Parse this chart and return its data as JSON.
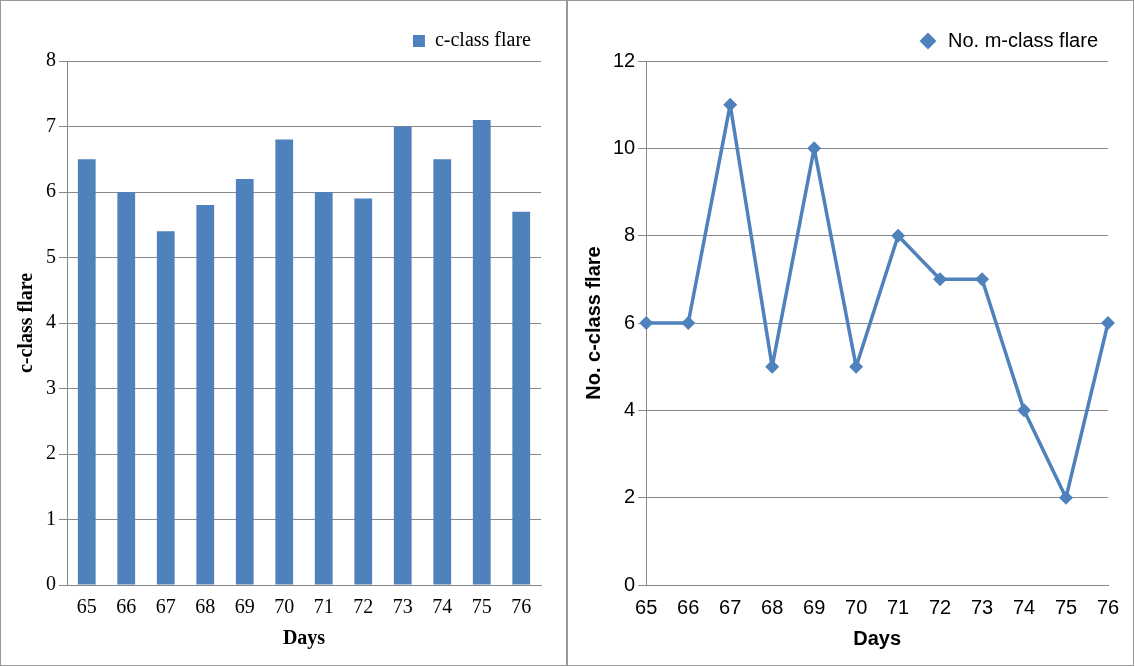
{
  "chart_data": [
    {
      "type": "bar",
      "xlabel": "Days",
      "ylabel": "c-class flare",
      "categories": [
        "65",
        "66",
        "67",
        "68",
        "69",
        "70",
        "71",
        "72",
        "73",
        "74",
        "75",
        "76"
      ],
      "series": [
        {
          "name": "c-class flare",
          "color": "#4f81bd",
          "values": [
            6.5,
            6.0,
            5.4,
            5.8,
            6.2,
            6.8,
            6.0,
            5.9,
            7.0,
            6.5,
            7.1,
            5.7
          ]
        }
      ],
      "ylim": [
        0,
        8
      ],
      "yticks": [
        0,
        1,
        2,
        3,
        4,
        5,
        6,
        7,
        8
      ],
      "grid": "y",
      "legend": "top right"
    },
    {
      "type": "line",
      "xlabel": "Days",
      "ylabel": "No. c-class flare",
      "categories": [
        "65",
        "66",
        "67",
        "68",
        "69",
        "70",
        "71",
        "72",
        "73",
        "74",
        "75",
        "76"
      ],
      "series": [
        {
          "name": "No. m-class flare",
          "color": "#4f81bd",
          "values": [
            6,
            6,
            11,
            5,
            10,
            5,
            8,
            7,
            7,
            4,
            2,
            6
          ]
        }
      ],
      "ylim": [
        0,
        12
      ],
      "yticks": [
        0,
        2,
        4,
        6,
        8,
        10,
        12
      ],
      "grid": "y",
      "legend": "top right",
      "marker": "diamond",
      "line_style": "solid"
    }
  ]
}
